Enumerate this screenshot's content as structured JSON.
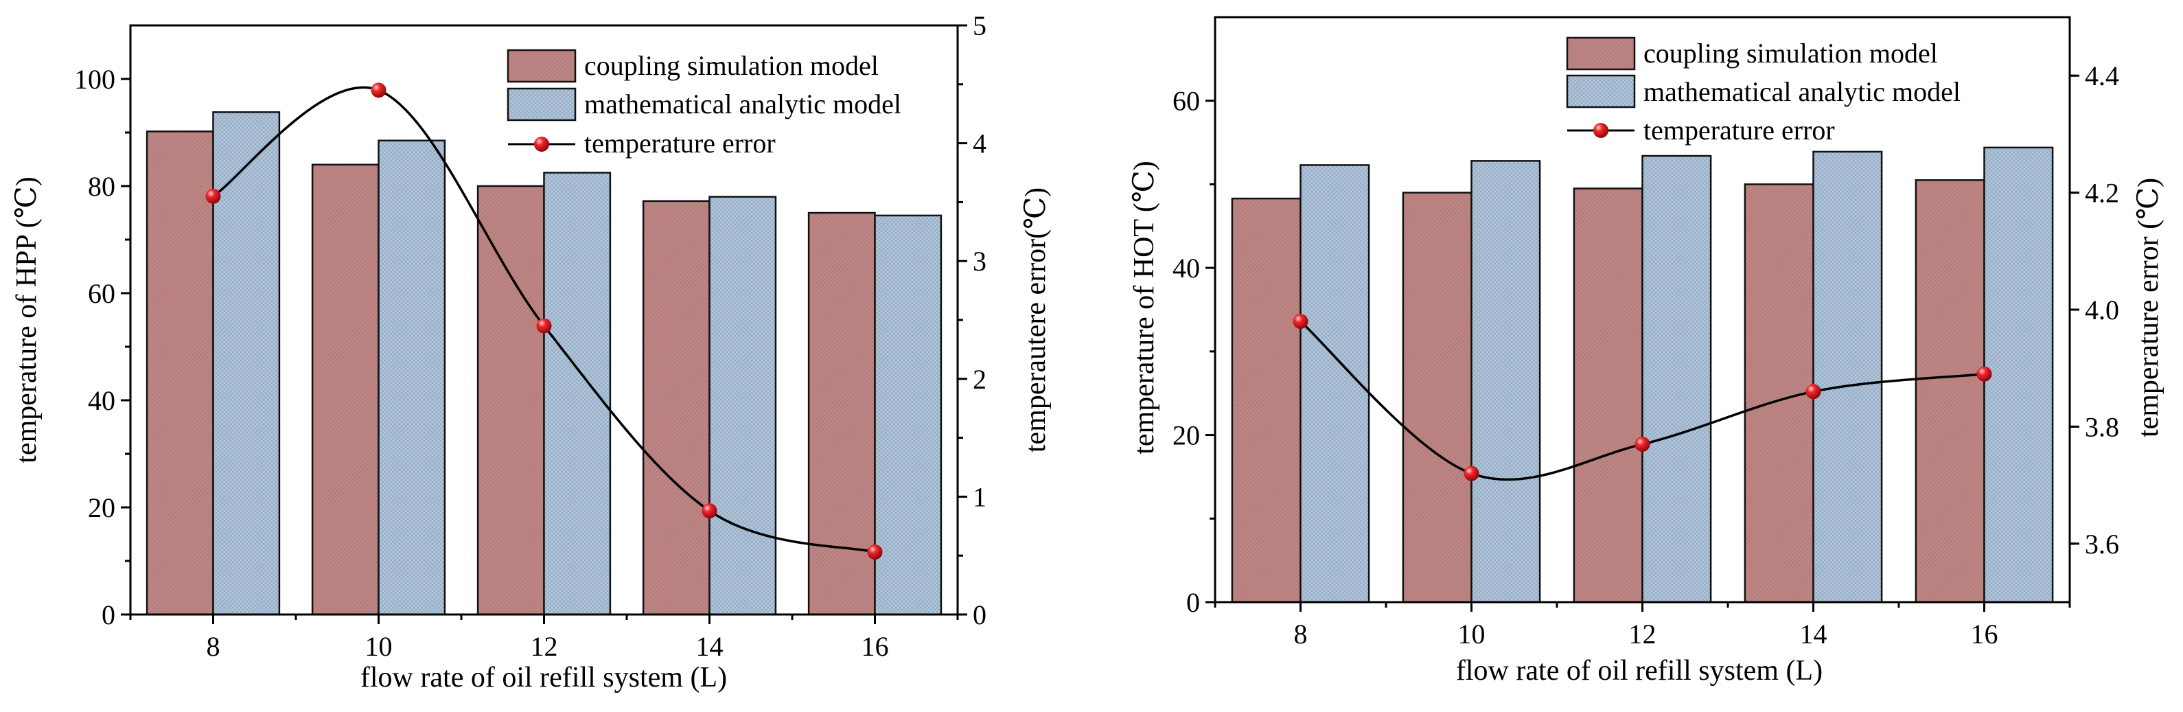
{
  "colors": {
    "bar_a": "#bc8684",
    "bar_b": "#aec3d8",
    "line": "#000000",
    "marker": "#e4151b"
  },
  "chart_data": [
    {
      "type": "bar",
      "title": "",
      "categories": [
        "8",
        "10",
        "12",
        "14",
        "16"
      ],
      "xlabel": "flow rate of oil refill system (L)",
      "ylabel": "temperature of  HPP (℃)",
      "ylabel2": "temperautere error(℃)",
      "ylim": [
        0,
        110
      ],
      "yticks": [
        0,
        20,
        40,
        60,
        80,
        100
      ],
      "ylim2": [
        0,
        5
      ],
      "yticks2": [
        0,
        1,
        2,
        3,
        4,
        5
      ],
      "series": [
        {
          "name": "coupling simulation model",
          "kind": "bar",
          "values": [
            90.2,
            84.0,
            80.0,
            77.2,
            75.0
          ]
        },
        {
          "name": "mathematical analytic model",
          "kind": "bar",
          "values": [
            93.8,
            88.5,
            82.5,
            78.0,
            74.5
          ]
        },
        {
          "name": "temperature error",
          "kind": "line",
          "axis": "right",
          "values": [
            3.55,
            4.45,
            2.45,
            0.88,
            0.53
          ]
        }
      ],
      "legend_position": "top-right"
    },
    {
      "type": "bar",
      "title": "",
      "categories": [
        "8",
        "10",
        "12",
        "14",
        "16"
      ],
      "xlabel": "flow rate of oil refill system (L)",
      "ylabel": "temperature of HOT (℃)",
      "ylabel2": "temperature error (℃)",
      "ylim": [
        0,
        70
      ],
      "yticks": [
        0,
        20,
        40,
        60
      ],
      "ylim2": [
        3.5,
        4.5
      ],
      "yticks2": [
        3.6,
        3.8,
        4.0,
        4.2,
        4.4
      ],
      "series": [
        {
          "name": "coupling simulation model",
          "kind": "bar",
          "values": [
            48.3,
            49.0,
            49.5,
            50.0,
            50.5
          ]
        },
        {
          "name": "mathematical analytic model",
          "kind": "bar",
          "values": [
            52.3,
            52.8,
            53.4,
            53.9,
            54.4
          ]
        },
        {
          "name": "temperature error",
          "kind": "line",
          "axis": "right",
          "values": [
            3.98,
            3.72,
            3.77,
            3.86,
            3.89
          ]
        }
      ],
      "legend_position": "top-right"
    }
  ]
}
